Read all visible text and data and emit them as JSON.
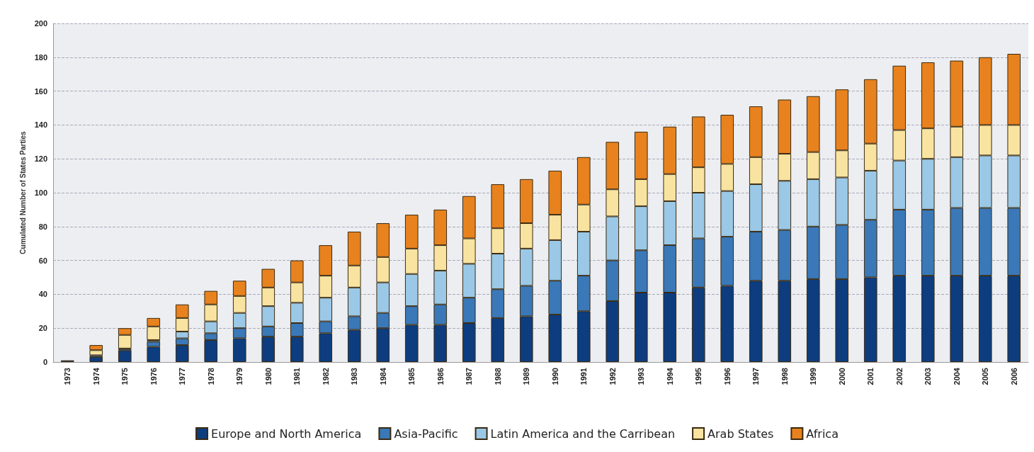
{
  "chart_data": {
    "type": "bar",
    "stacked": true,
    "ylabel": "Cumulated Number of States Parties",
    "categories": [
      "1973",
      "1974",
      "1975",
      "1976",
      "1977",
      "1978",
      "1979",
      "1980",
      "1981",
      "1982",
      "1983",
      "1984",
      "1985",
      "1986",
      "1987",
      "1988",
      "1989",
      "1990",
      "1991",
      "1992",
      "1993",
      "1994",
      "1995",
      "1996",
      "1997",
      "1998",
      "1999",
      "2000",
      "2001",
      "2002",
      "2003",
      "2004",
      "2005",
      "2006"
    ],
    "series": [
      {
        "name": "Europe and North America",
        "color": "#0d3d7f",
        "values": [
          1,
          3,
          7,
          9,
          10,
          13,
          14,
          15,
          15,
          17,
          19,
          20,
          22,
          22,
          23,
          26,
          27,
          28,
          30,
          36,
          41,
          41,
          44,
          45,
          48,
          48,
          49,
          49,
          50,
          51,
          51,
          51,
          51,
          51
        ]
      },
      {
        "name": "Asia-Pacific",
        "color": "#3a78b8",
        "values": [
          0,
          1,
          1,
          3,
          4,
          4,
          6,
          6,
          8,
          7,
          8,
          9,
          11,
          12,
          15,
          17,
          18,
          20,
          21,
          24,
          25,
          28,
          29,
          29,
          29,
          30,
          31,
          32,
          34,
          39,
          39,
          40,
          40,
          40
        ]
      },
      {
        "name": "Latin America and the Carribean",
        "color": "#9ac8e6",
        "values": [
          0,
          0,
          0,
          1,
          4,
          7,
          9,
          12,
          12,
          14,
          17,
          18,
          19,
          20,
          20,
          21,
          22,
          24,
          26,
          26,
          26,
          26,
          27,
          27,
          28,
          29,
          28,
          28,
          29,
          29,
          30,
          30,
          31,
          31
        ]
      },
      {
        "name": "Arab States",
        "color": "#f8e3a0",
        "values": [
          0,
          3,
          8,
          8,
          8,
          10,
          10,
          11,
          12,
          13,
          13,
          15,
          15,
          15,
          15,
          15,
          15,
          15,
          16,
          16,
          16,
          16,
          15,
          16,
          16,
          16,
          16,
          16,
          16,
          18,
          18,
          18,
          18,
          18
        ]
      },
      {
        "name": "Africa",
        "color": "#e8821e",
        "values": [
          0,
          3,
          4,
          5,
          8,
          8,
          9,
          11,
          13,
          18,
          20,
          20,
          20,
          21,
          25,
          26,
          26,
          26,
          28,
          28,
          28,
          28,
          30,
          29,
          30,
          32,
          33,
          36,
          38,
          38,
          39,
          39,
          40,
          42
        ]
      }
    ],
    "ylim": [
      0,
      200
    ],
    "yticks": [
      0,
      20,
      40,
      60,
      80,
      100,
      120,
      140,
      160,
      180,
      200
    ],
    "grid": "y",
    "legend": "bottom"
  }
}
